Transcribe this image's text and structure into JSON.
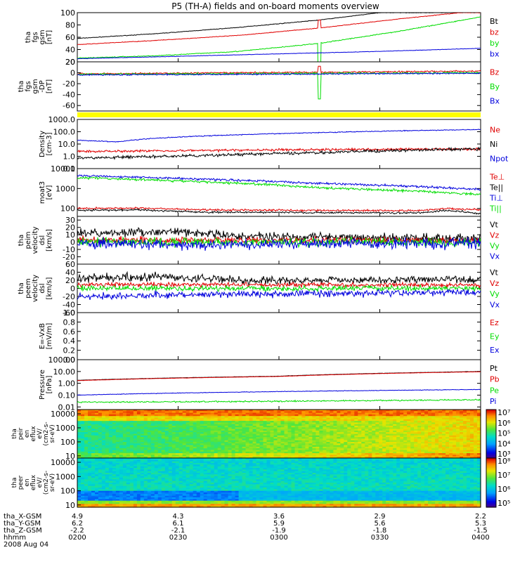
{
  "title": "P5 (TH-A) fields and on-board moments overview",
  "colors": {
    "black": "#000000",
    "red": "#e00000",
    "green": "#00dd00",
    "blue": "#0000dd",
    "yellow": "#ffff00"
  },
  "chart_data": {
    "type": "line",
    "x": {
      "ticks": [
        "0200",
        "0230",
        "0300",
        "0330",
        "0400"
      ],
      "start_time": "0200",
      "end_time": "0400"
    },
    "ephemeris": {
      "labels": [
        "tha_X-GSM",
        "tha_Y-GSM",
        "tha_Z-GSM",
        "hhmm",
        "2008 Aug 04"
      ],
      "rows": [
        [
          "4.9",
          "4.3",
          "3.6",
          "2.9",
          "2.2"
        ],
        [
          "6.2",
          "6.1",
          "5.9",
          "5.6",
          "5.3"
        ],
        [
          "-2.2",
          "-2.1",
          "-1.9",
          "-1.8",
          "-1.5"
        ],
        [
          "0200",
          "0230",
          "0300",
          "0330",
          "0400"
        ]
      ]
    },
    "panels": [
      {
        "id": "fgs",
        "ylabel": [
          "tha",
          "fgs",
          "gsm",
          "[nT]"
        ],
        "ylim": [
          20,
          100
        ],
        "yticks": [
          "20",
          "40",
          "60",
          "80",
          "100"
        ],
        "legend": [
          {
            "name": "Bt",
            "color": "black"
          },
          {
            "name": "bz",
            "color": "red"
          },
          {
            "name": "by",
            "color": "green"
          },
          {
            "name": "bx",
            "color": "blue"
          }
        ],
        "series": [
          {
            "name": "Bt",
            "color": "black",
            "points": [
              [
                0,
                58
              ],
              [
                0.2,
                66
              ],
              [
                0.4,
                76
              ],
              [
                0.6,
                88
              ],
              [
                0.75,
                100
              ]
            ],
            "noise": 0.4
          },
          {
            "name": "bz",
            "color": "red",
            "points": [
              [
                0,
                48
              ],
              [
                0.2,
                55
              ],
              [
                0.4,
                63
              ],
              [
                0.6,
                75
              ],
              [
                0.8,
                90
              ],
              [
                0.95,
                100
              ]
            ],
            "noise": 0.4,
            "spike": [
              0.6,
              88
            ]
          },
          {
            "name": "by",
            "color": "green",
            "points": [
              [
                0,
                26
              ],
              [
                0.2,
                30
              ],
              [
                0.4,
                37
              ],
              [
                0.6,
                50
              ],
              [
                0.8,
                70
              ],
              [
                1,
                93
              ]
            ],
            "noise": 0.6,
            "spike": [
              0.6,
              -20
            ]
          },
          {
            "name": "bx",
            "color": "blue",
            "points": [
              [
                0,
                25
              ],
              [
                0.25,
                29
              ],
              [
                0.5,
                33
              ],
              [
                0.75,
                37
              ],
              [
                1,
                42
              ]
            ],
            "noise": 0.3
          }
        ]
      },
      {
        "id": "fgs-dp",
        "ylabel": [
          "tha",
          "fgs",
          "gsm",
          "-DP",
          "[nT]"
        ],
        "ylim": [
          -70,
          20
        ],
        "yticks": [
          "-60",
          "-40",
          "-20",
          "0",
          "20"
        ],
        "legend": [
          {
            "name": "Bz",
            "color": "red"
          },
          {
            "name": "By",
            "color": "green"
          },
          {
            "name": "Bx",
            "color": "blue"
          }
        ],
        "series": [
          {
            "name": "Bz",
            "color": "red",
            "points": [
              [
                0,
                -2
              ],
              [
                1,
                3
              ]
            ],
            "noise": 1.2,
            "spike": [
              0.6,
              12
            ]
          },
          {
            "name": "By",
            "color": "green",
            "points": [
              [
                0,
                -3
              ],
              [
                1,
                0
              ]
            ],
            "noise": 1.5,
            "spike": [
              0.6,
              -48
            ]
          },
          {
            "name": "Bx",
            "color": "blue",
            "points": [
              [
                0,
                -4
              ],
              [
                1,
                -1
              ]
            ],
            "noise": 1.0
          }
        ]
      },
      {
        "id": "density",
        "ylabel": [
          "Density",
          "[cm-3]"
        ],
        "ylim": [
          0.1,
          1000
        ],
        "log": true,
        "yticks": [
          "0.1",
          "1.0",
          "10.0",
          "100.0",
          "1000.0"
        ],
        "legend": [
          {
            "name": "Ne",
            "color": "red"
          },
          {
            "name": "Ni",
            "color": "black"
          },
          {
            "name": "Npot",
            "color": "blue"
          }
        ],
        "series": [
          {
            "name": "Ne",
            "color": "red",
            "points": [
              [
                0,
                2.5
              ],
              [
                0.3,
                3
              ],
              [
                0.6,
                3.5
              ],
              [
                1,
                4
              ]
            ],
            "noise": 0.08
          },
          {
            "name": "Ni",
            "color": "black",
            "points": [
              [
                0,
                0.7
              ],
              [
                0.3,
                1.1
              ],
              [
                0.6,
                2
              ],
              [
                1,
                4
              ]
            ],
            "noise": 0.1
          },
          {
            "name": "Npot",
            "color": "blue",
            "points": [
              [
                0,
                20
              ],
              [
                0.1,
                15
              ],
              [
                0.2,
                30
              ],
              [
                0.5,
                70
              ],
              [
                1,
                150
              ]
            ],
            "noise": 0.03
          }
        ]
      },
      {
        "id": "temperature",
        "ylabel": [
          "moat3",
          "[eV]"
        ],
        "ylim": [
          40,
          10000
        ],
        "log": true,
        "yticks": [
          "100",
          "1000",
          "10000"
        ],
        "legend": [
          {
            "name": "Te⊥",
            "color": "red"
          },
          {
            "name": "Te||",
            "color": "black"
          },
          {
            "name": "Ti⊥",
            "color": "blue"
          },
          {
            "name": "Ti||",
            "color": "green"
          }
        ],
        "series": [
          {
            "name": "Ti⊥",
            "color": "blue",
            "points": [
              [
                0,
                4500
              ],
              [
                0.3,
                3000
              ],
              [
                0.6,
                1800
              ],
              [
                1,
                900
              ]
            ],
            "noise": 0.05
          },
          {
            "name": "Ti||",
            "color": "green",
            "points": [
              [
                0,
                3500
              ],
              [
                0.3,
                2200
              ],
              [
                0.6,
                1100
              ],
              [
                1,
                500
              ]
            ],
            "noise": 0.05
          },
          {
            "name": "Te⊥",
            "color": "red",
            "points": [
              [
                0,
                100
              ],
              [
                0.15,
                105
              ],
              [
                0.3,
                85
              ],
              [
                0.6,
                80
              ],
              [
                0.85,
                78
              ],
              [
                0.92,
                100
              ],
              [
                1,
                85
              ]
            ],
            "noise": 0.04
          },
          {
            "name": "Te||",
            "color": "black",
            "points": [
              [
                0,
                80
              ],
              [
                0.15,
                85
              ],
              [
                0.3,
                65
              ],
              [
                0.6,
                62
              ],
              [
                0.85,
                60
              ],
              [
                0.92,
                80
              ],
              [
                1,
                55
              ]
            ],
            "noise": 0.04
          }
        ]
      },
      {
        "id": "peim",
        "ylabel": [
          "tha",
          "peim",
          "velocity",
          "dsl",
          "[km/s]"
        ],
        "ylim": [
          -30,
          35
        ],
        "yticks": [
          "-20",
          "-10",
          "0",
          "10",
          "20",
          "30"
        ],
        "legend": [
          {
            "name": "Vt",
            "color": "black"
          },
          {
            "name": "Vz",
            "color": "red"
          },
          {
            "name": "Vy",
            "color": "green"
          },
          {
            "name": "Vx",
            "color": "blue"
          }
        ],
        "series": [
          {
            "name": "Vt",
            "color": "black",
            "points": [
              [
                0,
                12
              ],
              [
                0.25,
                14
              ],
              [
                0.4,
                8
              ],
              [
                1,
                5
              ]
            ],
            "noise": 5
          },
          {
            "name": "Vz",
            "color": "red",
            "points": [
              [
                0,
                3
              ],
              [
                1,
                2
              ]
            ],
            "noise": 4
          },
          {
            "name": "Vy",
            "color": "green",
            "points": [
              [
                0,
                0
              ],
              [
                1,
                0
              ]
            ],
            "noise": 5
          },
          {
            "name": "Vx",
            "color": "blue",
            "points": [
              [
                0,
                -2
              ],
              [
                0.3,
                -4
              ],
              [
                1,
                -1
              ]
            ],
            "noise": 6
          }
        ]
      },
      {
        "id": "peem",
        "ylabel": [
          "tha",
          "peem",
          "velocity",
          "dsl",
          "[km/s]"
        ],
        "ylim": [
          -60,
          60
        ],
        "yticks": [
          "-60",
          "-40",
          "-20",
          "0",
          "20",
          "40",
          "60"
        ],
        "legend": [
          {
            "name": "Vt",
            "color": "black"
          },
          {
            "name": "Vz",
            "color": "red"
          },
          {
            "name": "Vy",
            "color": "green"
          },
          {
            "name": "Vx",
            "color": "blue"
          }
        ],
        "series": [
          {
            "name": "Vt",
            "color": "black",
            "points": [
              [
                0,
                25
              ],
              [
                0.2,
                30
              ],
              [
                0.4,
                20
              ],
              [
                1,
                22
              ]
            ],
            "noise": 8
          },
          {
            "name": "Vz",
            "color": "red",
            "points": [
              [
                0,
                10
              ],
              [
                1,
                8
              ]
            ],
            "noise": 5
          },
          {
            "name": "Vy",
            "color": "green",
            "points": [
              [
                0,
                0
              ],
              [
                1,
                0
              ]
            ],
            "noise": 6
          },
          {
            "name": "Vx",
            "color": "blue",
            "points": [
              [
                0,
                -20
              ],
              [
                0.3,
                -15
              ],
              [
                1,
                -10
              ]
            ],
            "noise": 7
          }
        ]
      },
      {
        "id": "efield",
        "ylabel": [
          "E=-VxB",
          "[mV/m]"
        ],
        "ylim": [
          0,
          1
        ],
        "yticks": [
          "0.0",
          "0.2",
          "0.4",
          "0.6",
          "0.8",
          "1.0"
        ],
        "legend": [
          {
            "name": "Ez",
            "color": "red"
          },
          {
            "name": "Ey",
            "color": "green"
          },
          {
            "name": "Ex",
            "color": "blue"
          }
        ],
        "series": []
      },
      {
        "id": "pressure",
        "ylabel": [
          "Pressure",
          "[nPa]"
        ],
        "ylim": [
          0.006,
          100
        ],
        "log": true,
        "yticks": [
          "0.01",
          "0.10",
          "1.00",
          "10.00",
          "100.00"
        ],
        "legend": [
          {
            "name": "Pt",
            "color": "black"
          },
          {
            "name": "Pb",
            "color": "red"
          },
          {
            "name": "Pe",
            "color": "green"
          },
          {
            "name": "Pi",
            "color": "blue"
          }
        ],
        "series": [
          {
            "name": "Pt",
            "color": "black",
            "points": [
              [
                0,
                1.8
              ],
              [
                0.5,
                4
              ],
              [
                1,
                10
              ]
            ],
            "noise": 0.01
          },
          {
            "name": "Pb",
            "color": "red",
            "points": [
              [
                0,
                1.7
              ],
              [
                0.5,
                3.8
              ],
              [
                1,
                9.5
              ]
            ],
            "noise": 0.01
          },
          {
            "name": "Pi",
            "color": "blue",
            "points": [
              [
                0,
                0.1
              ],
              [
                0.5,
                0.2
              ],
              [
                1,
                0.3
              ]
            ],
            "noise": 0.02
          },
          {
            "name": "Pe",
            "color": "green",
            "points": [
              [
                0,
                0.025
              ],
              [
                0.5,
                0.03
              ],
              [
                1,
                0.04
              ]
            ],
            "noise": 0.05
          }
        ]
      }
    ],
    "spectrograms": [
      {
        "id": "peir",
        "type": "heatmap",
        "ylabel": [
          "tha",
          "peir",
          "en",
          "eflux",
          "eV/",
          "(cm2-s-",
          "sr-eV)"
        ],
        "yticks": [
          "10",
          "100",
          "1000",
          "10000"
        ],
        "colorbar": [
          "10³",
          "10⁴",
          "10⁵",
          "10⁶",
          "10⁷"
        ]
      },
      {
        "id": "peer",
        "type": "heatmap",
        "ylabel": [
          "tha",
          "peer",
          "en",
          "eflux",
          "eV/",
          "(cm2-s-",
          "sr-eV)"
        ],
        "yticks": [
          "10",
          "100",
          "1000",
          "10000"
        ],
        "colorbar": [
          "10⁵",
          "10⁶",
          "10⁷",
          "10⁸"
        ]
      }
    ]
  }
}
